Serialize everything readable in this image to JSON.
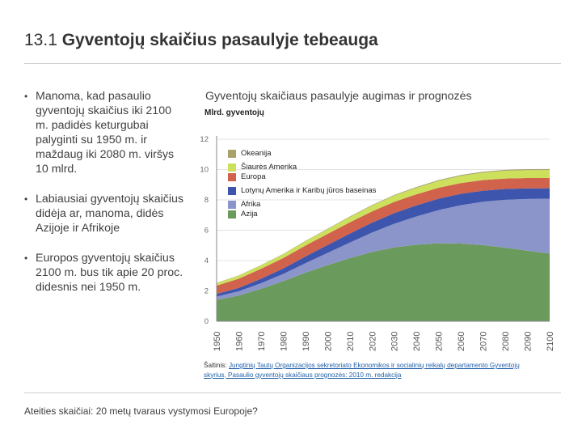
{
  "slide": {
    "number": "13.1",
    "title": "Gyventojų skaičius pasaulyje tebeauga"
  },
  "bullets": [
    "Manoma, kad pasaulio gyventojų skaičius iki 2100 m. padidės keturgubai palyginti su 1950 m. ir maždaug iki 2080 m. viršys 10 mlrd.",
    "Labiausiai gyventojų skaičius didėja ar, manoma, didės Azijoje ir Afrikoje",
    "Europos gyventojų skaičius 2100 m. bus tik apie 20 proc. didesnis nei 1950 m."
  ],
  "source": {
    "label": "Šaltinis:",
    "text": "Jungtinių Tautų Organizacijos sekretoriato Ekonomikos ir socialinių reikalų departamento Gyventojų skyrius, Pasaulio gyventojų skaičiaus prognozės: 2010 m. redakcija"
  },
  "footer": "Ateities skaičiai: 20 metų tvaraus vystymosi Europoje?",
  "chart_data": {
    "type": "area",
    "stacked": true,
    "title": "Gyventojų skaičiaus pasaulyje augimas ir prognozės",
    "ylabel": "Mlrd. gyventojų",
    "ylim": [
      0,
      12
    ],
    "yticks": [
      0,
      2,
      4,
      6,
      8,
      10,
      12
    ],
    "x": [
      1950,
      1960,
      1970,
      1980,
      1990,
      2000,
      2010,
      2020,
      2030,
      2040,
      2050,
      2060,
      2070,
      2080,
      2090,
      2100
    ],
    "xtick_labels": [
      "1950",
      "1960",
      "1970",
      "1980",
      "1990",
      "2000",
      "2010",
      "2020",
      "2030",
      "2040",
      "2050",
      "2060",
      "2070",
      "2080",
      "2090",
      "2100"
    ],
    "series": [
      {
        "name": "Azija",
        "color": "#6a9a5c",
        "values": [
          1.4,
          1.7,
          2.14,
          2.64,
          3.2,
          3.7,
          4.16,
          4.57,
          4.87,
          5.05,
          5.14,
          5.12,
          5.02,
          4.85,
          4.65,
          4.47
        ]
      },
      {
        "name": "Afrika",
        "color": "#8c95c9",
        "values": [
          0.23,
          0.28,
          0.37,
          0.48,
          0.63,
          0.81,
          1.03,
          1.28,
          1.56,
          1.86,
          2.19,
          2.53,
          2.86,
          3.16,
          3.41,
          3.61
        ]
      },
      {
        "name": "Lotynų Amerika ir Karibų jūros baseinas",
        "color": "#3d55ad",
        "values": [
          0.17,
          0.22,
          0.29,
          0.36,
          0.44,
          0.52,
          0.59,
          0.65,
          0.7,
          0.73,
          0.75,
          0.75,
          0.73,
          0.71,
          0.7,
          0.69
        ]
      },
      {
        "name": "Europa",
        "color": "#d1624b",
        "values": [
          0.55,
          0.61,
          0.66,
          0.69,
          0.72,
          0.73,
          0.74,
          0.74,
          0.74,
          0.73,
          0.72,
          0.71,
          0.7,
          0.69,
          0.68,
          0.67
        ]
      },
      {
        "name": "Šiaurės Amerika",
        "color": "#cce05c",
        "values": [
          0.17,
          0.2,
          0.23,
          0.25,
          0.28,
          0.31,
          0.35,
          0.38,
          0.41,
          0.43,
          0.45,
          0.47,
          0.49,
          0.51,
          0.52,
          0.53
        ]
      },
      {
        "name": "Okeanija",
        "color": "#a9a26f",
        "values": [
          0.013,
          0.016,
          0.02,
          0.023,
          0.027,
          0.031,
          0.037,
          0.043,
          0.048,
          0.052,
          0.055,
          0.058,
          0.061,
          0.063,
          0.065,
          0.066
        ]
      }
    ],
    "legend_order": [
      "Okeanija",
      "Šiaurės Amerika",
      "Europa",
      "Lotynų Amerika ir Karibų jūros baseinas",
      "Afrika",
      "Azija"
    ]
  }
}
